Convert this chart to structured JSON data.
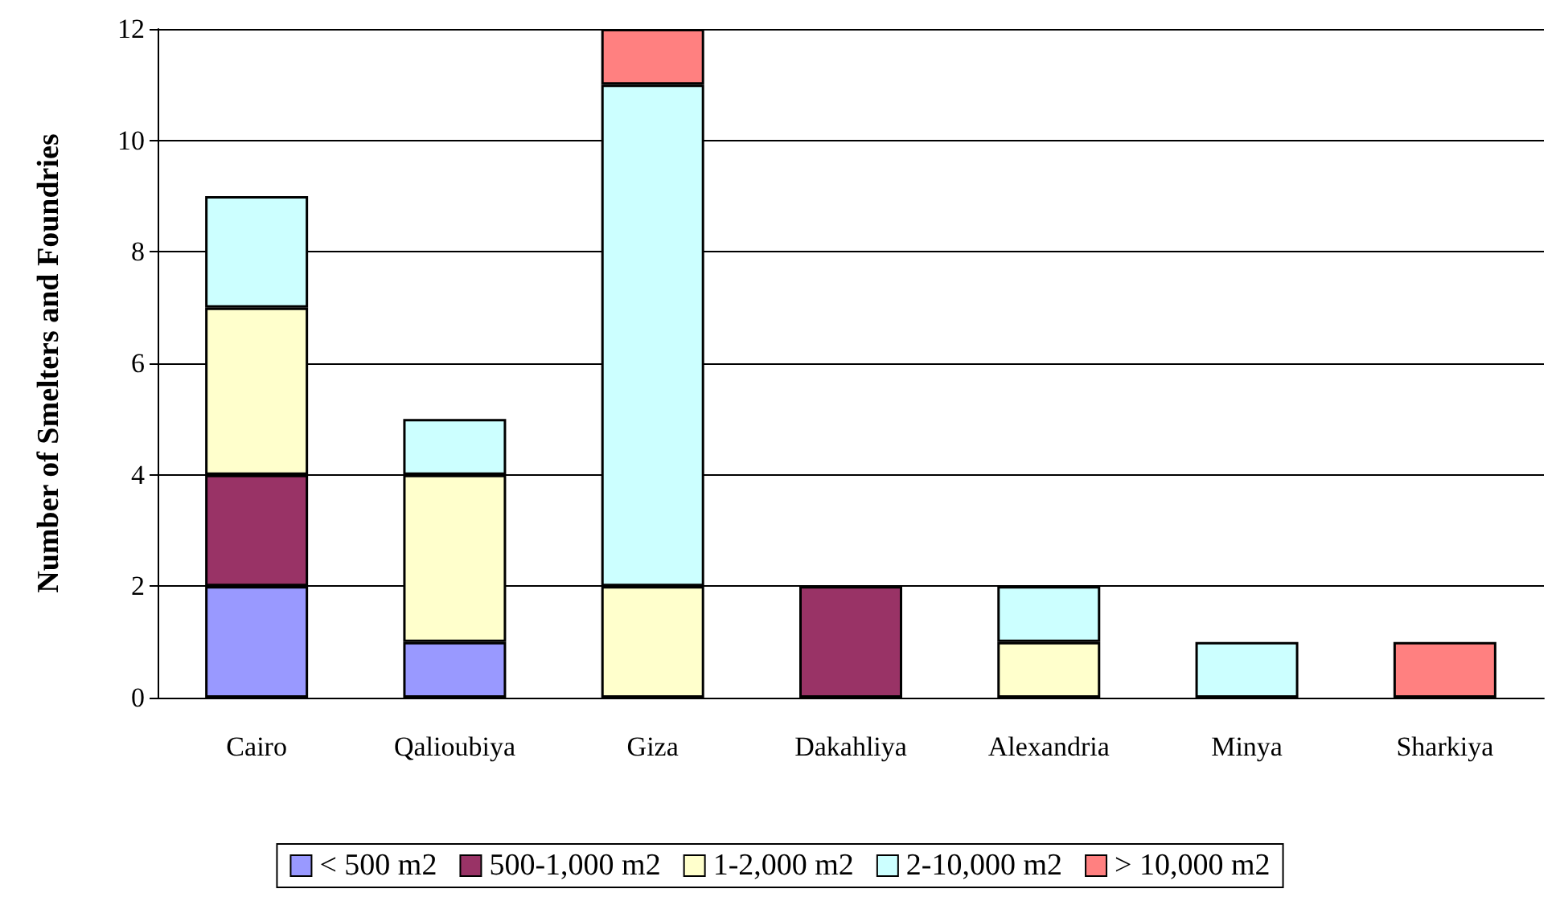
{
  "chart_data": {
    "type": "bar",
    "stacked": true,
    "ylabel": "Number of Smelters and Foundries",
    "categories": [
      "Cairo",
      "Qalioubiya",
      "Giza",
      "Dakahliya",
      "Alexandria",
      "Minya",
      "Sharkiya"
    ],
    "series": [
      {
        "name": "< 500 m2",
        "color": "#9999ff",
        "values": [
          2,
          1,
          null,
          null,
          null,
          null,
          null
        ]
      },
      {
        "name": "500-1,000 m2",
        "color": "#993366",
        "values": [
          2,
          null,
          null,
          2,
          null,
          null,
          null
        ]
      },
      {
        "name": "1-2,000 m2",
        "color": "#ffffcc",
        "values": [
          3,
          3,
          2,
          null,
          1,
          null,
          null
        ]
      },
      {
        "name": "2-10,000 m2",
        "color": "#ccffff",
        "values": [
          2,
          1,
          9,
          null,
          1,
          1,
          null
        ]
      },
      {
        "name": "> 10,000 m2",
        "color": "#ff8080",
        "values": [
          null,
          null,
          1,
          null,
          null,
          null,
          1
        ]
      }
    ],
    "ylim": [
      0,
      12
    ],
    "yticks": [
      0,
      2,
      4,
      6,
      8,
      10,
      12
    ],
    "grid": "y",
    "legend": "bottom"
  }
}
